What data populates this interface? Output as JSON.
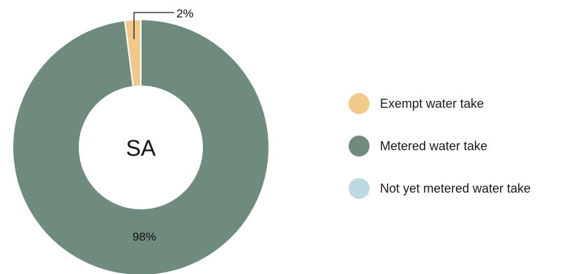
{
  "chart_data": {
    "type": "pie",
    "center_label": "SA",
    "series": [
      {
        "name": "Exempt water take",
        "value": 2,
        "label": "2%",
        "color": "#f0c98b"
      },
      {
        "name": "Metered water take",
        "value": 98,
        "label": "98%",
        "color": "#6e8b7e"
      },
      {
        "name": "Not yet metered water take",
        "value": 0,
        "label": "",
        "color": "#bcd9e2"
      }
    ],
    "legend_position": "right"
  }
}
